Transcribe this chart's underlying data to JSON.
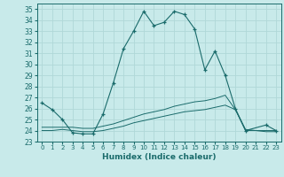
{
  "xlabel": "Humidex (Indice chaleur)",
  "background_color": "#c8eaea",
  "line_color": "#1a6b6b",
  "grid_color": "#b0d8d8",
  "xlim": [
    -0.5,
    23.5
  ],
  "ylim": [
    23,
    35.5
  ],
  "yticks": [
    23,
    24,
    25,
    26,
    27,
    28,
    29,
    30,
    31,
    32,
    33,
    34,
    35
  ],
  "series1_x": [
    0,
    1,
    2,
    3,
    4,
    5,
    6,
    7,
    8,
    9,
    10,
    11,
    12,
    13,
    14,
    15,
    16,
    17,
    18,
    19,
    20,
    22,
    23
  ],
  "series1_y": [
    26.5,
    25.9,
    25.0,
    23.8,
    23.7,
    23.7,
    25.5,
    28.3,
    31.4,
    33.0,
    34.8,
    33.5,
    33.8,
    34.8,
    34.5,
    33.2,
    29.5,
    31.2,
    29.0,
    26.0,
    24.0,
    24.5,
    24.0
  ],
  "series2_x": [
    0,
    1,
    2,
    3,
    4,
    5,
    6,
    7,
    8,
    9,
    10,
    11,
    12,
    13,
    14,
    15,
    16,
    17,
    18,
    19,
    20,
    21,
    22,
    23
  ],
  "series2_y": [
    24.0,
    24.0,
    24.1,
    24.0,
    23.9,
    23.9,
    24.0,
    24.2,
    24.4,
    24.7,
    24.9,
    25.1,
    25.3,
    25.5,
    25.7,
    25.8,
    25.9,
    26.1,
    26.3,
    25.9,
    24.0,
    24.0,
    23.9,
    23.9
  ],
  "series3_x": [
    0,
    1,
    2,
    3,
    4,
    5,
    6,
    7,
    8,
    9,
    10,
    11,
    12,
    13,
    14,
    15,
    16,
    17,
    18,
    19,
    20,
    21,
    22,
    23
  ],
  "series3_y": [
    24.3,
    24.3,
    24.3,
    24.3,
    24.2,
    24.2,
    24.4,
    24.6,
    24.9,
    25.2,
    25.5,
    25.7,
    25.9,
    26.2,
    26.4,
    26.6,
    26.7,
    26.9,
    27.2,
    25.9,
    24.1,
    24.0,
    24.0,
    24.0
  ]
}
